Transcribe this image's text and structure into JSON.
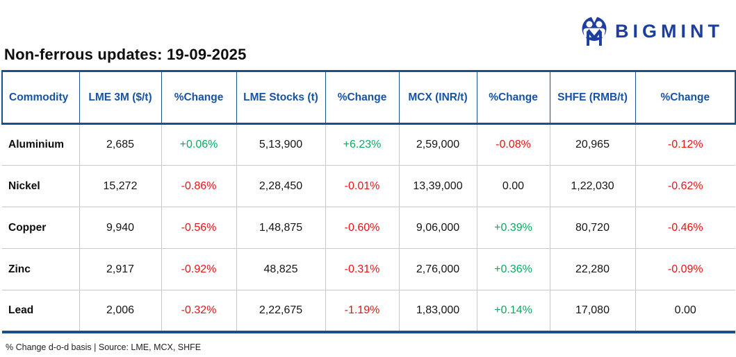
{
  "header": {
    "brand": "BIGMINT",
    "title": "Non-ferrous updates: 19-09-2025"
  },
  "colors": {
    "table_blue": "#17508f",
    "header_text_blue": "#1553a8",
    "brand_blue": "#1c3e9e",
    "positive_green": "#0ca95f",
    "negative_red": "#ee1111"
  },
  "table": {
    "headers": [
      "Commodity",
      "LME 3M ($/t)",
      "%Change",
      "LME Stocks (t)",
      "%Change",
      "MCX (INR/t)",
      "%Change",
      "SHFE (RMB/t)",
      "%Change"
    ],
    "rows": [
      [
        "Aluminium",
        "2,685",
        "+0.06%",
        "5,13,900",
        "+6.23%",
        "2,59,000",
        "-0.08%",
        "20,965",
        "-0.12%"
      ],
      [
        "Nickel",
        "15,272",
        "-0.86%",
        "2,28,450",
        "-0.01%",
        "13,39,000",
        "0.00",
        "1,22,030",
        "-0.62%"
      ],
      [
        "Copper",
        "9,940",
        "-0.56%",
        "1,48,875",
        "-0.60%",
        "9,06,000",
        "+0.39%",
        "80,720",
        "-0.46%"
      ],
      [
        "Zinc",
        "2,917",
        "-0.92%",
        "48,825",
        "-0.31%",
        "2,76,000",
        "+0.36%",
        "22,280",
        "-0.09%"
      ],
      [
        "Lead",
        "2,006",
        "-0.32%",
        "2,22,675",
        "-1.19%",
        "1,83,000",
        "+0.14%",
        "17,080",
        "0.00"
      ]
    ]
  },
  "footnote": "% Change d-o-d basis | Source: LME, MCX, SHFE",
  "chart_data": {
    "type": "table",
    "title": "Non-ferrous updates: 19-09-2025",
    "columns": [
      "Commodity",
      "LME 3M ($/t)",
      "%Change",
      "LME Stocks (t)",
      "%Change",
      "MCX (INR/t)",
      "%Change",
      "SHFE (RMB/t)",
      "%Change"
    ],
    "rows": [
      [
        "Aluminium",
        "2,685",
        "+0.06%",
        "5,13,900",
        "+6.23%",
        "2,59,000",
        "-0.08%",
        "20,965",
        "-0.12%"
      ],
      [
        "Nickel",
        "15,272",
        "-0.86%",
        "2,28,450",
        "-0.01%",
        "13,39,000",
        "0.00",
        "1,22,030",
        "-0.62%"
      ],
      [
        "Copper",
        "9,940",
        "-0.56%",
        "1,48,875",
        "-0.60%",
        "9,06,000",
        "+0.39%",
        "80,720",
        "-0.46%"
      ],
      [
        "Zinc",
        "2,917",
        "-0.92%",
        "48,825",
        "-0.31%",
        "2,76,000",
        "+0.36%",
        "22,280",
        "-0.09%"
      ],
      [
        "Lead",
        "2,006",
        "-0.32%",
        "2,22,675",
        "-1.19%",
        "1,83,000",
        "+0.14%",
        "17,080",
        "0.00"
      ]
    ],
    "note": "% Change d-o-d basis | Source: LME, MCX, SHFE"
  }
}
